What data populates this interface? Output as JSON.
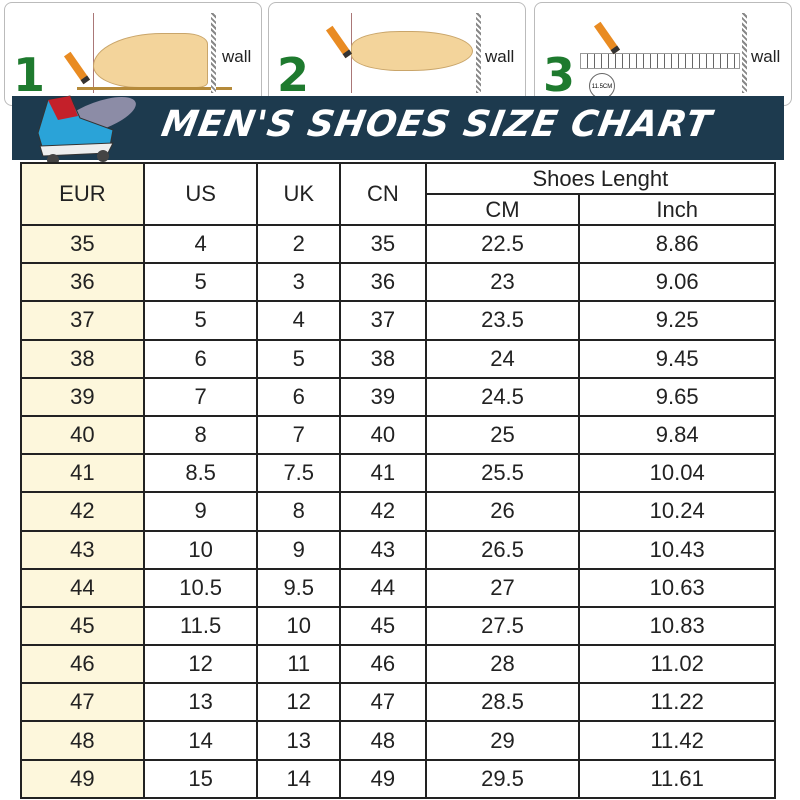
{
  "steps": [
    {
      "number": "1",
      "label": "wall"
    },
    {
      "number": "2",
      "label": "wall"
    },
    {
      "number": "3",
      "label": "wall",
      "measure": "11.5CM"
    }
  ],
  "banner": {
    "title": "MEN'S SHOES SIZE CHART"
  },
  "table": {
    "headers": [
      "EUR",
      "US",
      "UK",
      "CN"
    ],
    "group_header": "Shoes Lenght",
    "sub_headers": [
      "CM",
      "Inch"
    ],
    "rows": [
      [
        "35",
        "4",
        "2",
        "35",
        "22.5",
        "8.86"
      ],
      [
        "36",
        "5",
        "3",
        "36",
        "23",
        "9.06"
      ],
      [
        "37",
        "5",
        "4",
        "37",
        "23.5",
        "9.25"
      ],
      [
        "38",
        "6",
        "5",
        "38",
        "24",
        "9.45"
      ],
      [
        "39",
        "7",
        "6",
        "39",
        "24.5",
        "9.65"
      ],
      [
        "40",
        "8",
        "7",
        "40",
        "25",
        "9.84"
      ],
      [
        "41",
        "8.5",
        "7.5",
        "41",
        "25.5",
        "10.04"
      ],
      [
        "42",
        "9",
        "8",
        "42",
        "26",
        "10.24"
      ],
      [
        "43",
        "10",
        "9",
        "43",
        "26.5",
        "10.43"
      ],
      [
        "44",
        "10.5",
        "9.5",
        "44",
        "27",
        "10.63"
      ],
      [
        "45",
        "11.5",
        "10",
        "45",
        "27.5",
        "10.83"
      ],
      [
        "46",
        "12",
        "11",
        "46",
        "28",
        "11.02"
      ],
      [
        "47",
        "13",
        "12",
        "47",
        "28.5",
        "11.22"
      ],
      [
        "48",
        "14",
        "13",
        "48",
        "29",
        "11.42"
      ],
      [
        "49",
        "15",
        "14",
        "49",
        "29.5",
        "11.61"
      ]
    ]
  },
  "colors": {
    "banner": "#1d3a4e",
    "eur_column": "#fdf7dc",
    "step_number": "#1e7a2e"
  }
}
